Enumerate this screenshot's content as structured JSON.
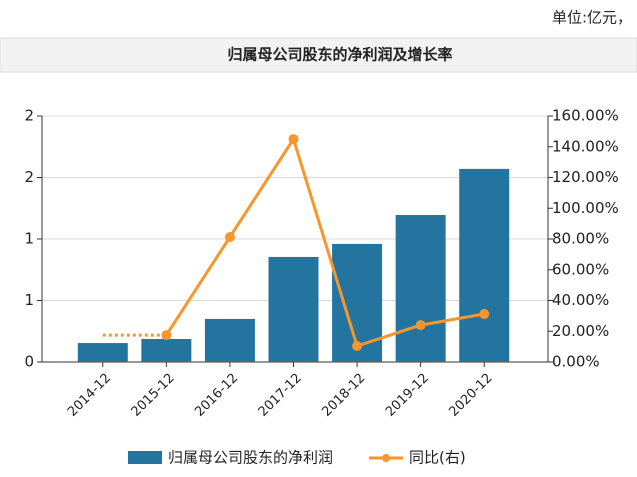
{
  "unit_note": "单位:亿元，",
  "chart_data": {
    "type": "bar-line",
    "title": "归属母公司股东的净利润及增长率",
    "categories": [
      "2014-12",
      "2015-12",
      "2016-12",
      "2017-12",
      "2018-12",
      "2019-12",
      "2020-12"
    ],
    "series": [
      {
        "name": "归属母公司股东的净利润",
        "type": "bar",
        "color": "#23749f",
        "values": [
          0.154,
          0.187,
          0.35,
          0.854,
          0.96,
          1.195,
          1.57
        ]
      },
      {
        "name": "同比(右)",
        "type": "line",
        "axis": "y2",
        "color": "#f7962c",
        "values": [
          null,
          17.5,
          81.3,
          145,
          10.4,
          24,
          31.2
        ]
      }
    ],
    "ylim": [
      0,
      2
    ],
    "yticks": [
      0,
      {
        "value": 0.5,
        "label": "1"
      },
      1,
      {
        "value": 1.5,
        "label": "2"
      },
      2
    ],
    "y2lim": [
      0,
      160
    ],
    "y2ticks": [
      {
        "value": 0,
        "label": "0.00%"
      },
      {
        "value": 20,
        "label": "20.00%"
      },
      {
        "value": 40,
        "label": "40.00%"
      },
      {
        "value": 60,
        "label": "60.00%"
      },
      {
        "value": 80,
        "label": "80.00%"
      },
      {
        "value": 100,
        "label": "100.00%"
      },
      {
        "value": 120,
        "label": "120.00%"
      },
      {
        "value": 140,
        "label": "140.00%"
      },
      {
        "value": 160,
        "label": "160.00%"
      }
    ],
    "grid": true,
    "legend": "bottom"
  }
}
